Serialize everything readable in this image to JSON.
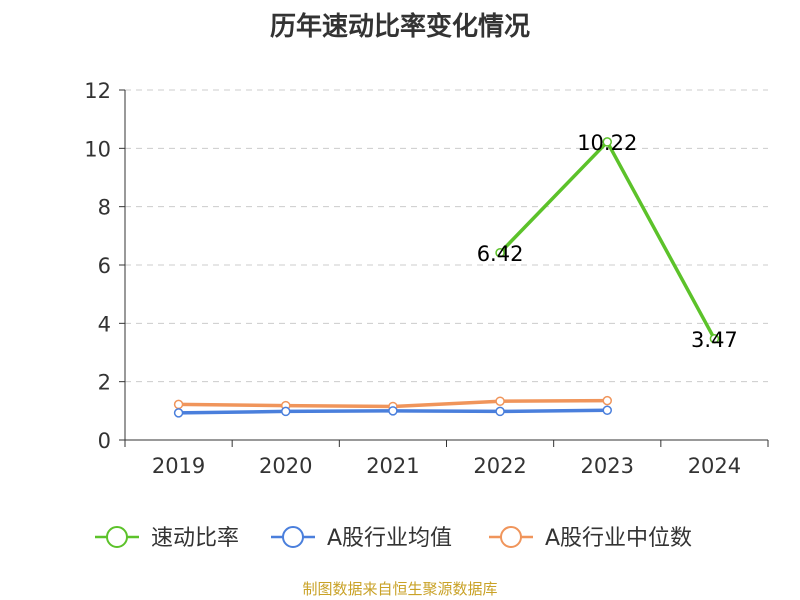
{
  "source_note": "制图数据来自恒生聚源数据库",
  "chart_data": {
    "type": "line",
    "title": "历年速动比率变化情况",
    "categories": [
      "2019",
      "2020",
      "2021",
      "2022",
      "2023",
      "2024"
    ],
    "ylim": [
      0,
      12
    ],
    "yticks": [
      0,
      2,
      4,
      6,
      8,
      10,
      12
    ],
    "grid": true,
    "legend_position": "bottom",
    "series": [
      {
        "name": "速动比率",
        "color": "#5cc22a",
        "values": [
          null,
          null,
          null,
          6.42,
          10.22,
          3.47
        ],
        "labels": [
          null,
          null,
          null,
          "6.42",
          "10.22",
          "3.47"
        ]
      },
      {
        "name": "A股行业均值",
        "color": "#4a7fdc",
        "values": [
          0.93,
          0.98,
          1.0,
          0.98,
          1.02,
          null
        ]
      },
      {
        "name": "A股行业中位数",
        "color": "#f0955b",
        "values": [
          1.22,
          1.18,
          1.15,
          1.33,
          1.35,
          null
        ]
      }
    ]
  }
}
